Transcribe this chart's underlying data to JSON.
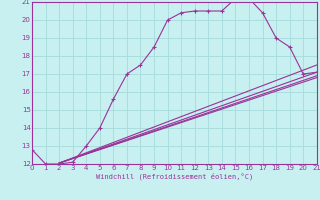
{
  "xlabel": "Windchill (Refroidissement éolien,°C)",
  "bg_color": "#c8f0f0",
  "line_color": "#993399",
  "grid_color": "#aadddd",
  "xmin": 0,
  "xmax": 21,
  "ymin": 12,
  "ymax": 21,
  "curve_x": [
    0,
    1,
    2,
    3,
    4,
    5,
    6,
    7,
    8,
    9,
    10,
    11,
    12,
    13,
    14,
    15,
    16,
    17,
    18,
    19,
    20,
    21
  ],
  "curve_y": [
    12.8,
    12.0,
    12.0,
    12.1,
    13.0,
    14.0,
    15.6,
    17.0,
    17.5,
    18.5,
    20.0,
    20.4,
    20.5,
    20.5,
    20.5,
    21.2,
    21.2,
    20.4,
    19.0,
    18.5,
    17.0,
    17.1
  ],
  "straight_lines": [
    {
      "x": [
        2,
        21
      ],
      "y": [
        12.05,
        17.5
      ]
    },
    {
      "x": [
        2,
        21
      ],
      "y": [
        12.05,
        17.1
      ]
    },
    {
      "x": [
        2,
        21
      ],
      "y": [
        12.05,
        16.9
      ]
    },
    {
      "x": [
        2,
        21
      ],
      "y": [
        12.05,
        16.8
      ]
    }
  ]
}
